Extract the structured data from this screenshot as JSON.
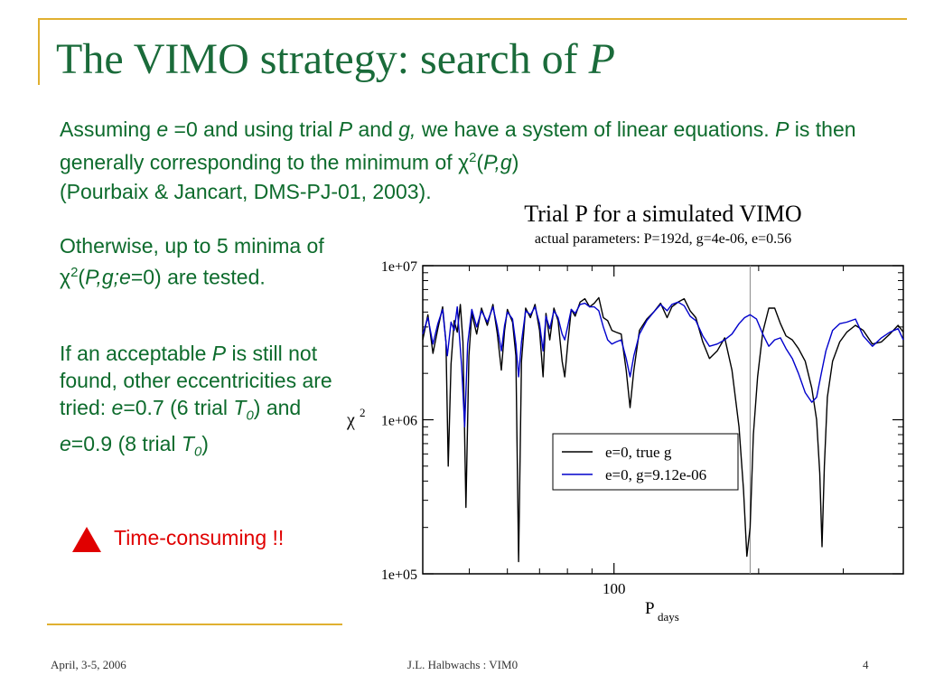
{
  "slide": {
    "title_main": "The VIMO strategy: search of ",
    "title_var": "P",
    "intro": {
      "p1": "Assuming ",
      "e": "e",
      "p2": " =0 and using trial ",
      "P": "P",
      "p3": "  and ",
      "g": "g,",
      "p4": " we have a system of linear equations. ",
      "P2": "P",
      "p5": " is then generally corresponding to the minimum of ",
      "chi": "χ",
      "sq": "2",
      "p6": "(",
      "Pg": "P,g",
      "p7": ")",
      "p8": "(Pourbaix & Jancart, DMS-PJ-01, 2003)."
    },
    "bullet1": {
      "t1": "Otherwise, up to 5 minima of ",
      "chi": "χ",
      "sq": "2",
      "t2": "(",
      "args": "P,g;e",
      "t3": "=0) are tested."
    },
    "bullet2": {
      "t1": "If an acceptable ",
      "P": "P",
      "t2": " is still not found, other eccentricities are tried: ",
      "e1": "e",
      "t3": "=0.7 (6 trial ",
      "T1": "T",
      "s1": "0",
      "t4": ") and ",
      "e2": "e",
      "t5": "=0.9 (8 trial ",
      "T2": "T",
      "s2": "0",
      "t6": ")"
    },
    "warning": "Time-consuming !!",
    "footer": {
      "date": "April, 3-5, 2006",
      "author": "J.L. Halbwachs : VIM0",
      "page": "4"
    }
  },
  "chart_data": {
    "type": "line",
    "title": "Trial P for a simulated VIMO",
    "subtitle": "actual parameters: P=192d, g=4e-06, e=0.56",
    "xlabel_main": "P",
    "xlabel_sub": "days",
    "ylabel_main": "χ",
    "ylabel_sup": "2",
    "xscale": "log",
    "yscale": "log",
    "xlim": [
      40,
      400
    ],
    "ylim": [
      100000,
      10000000
    ],
    "x_ticks": [
      100
    ],
    "x_tick_labels": [
      "100"
    ],
    "y_ticks": [
      100000,
      1000000,
      10000000
    ],
    "y_tick_labels": [
      "1e+05",
      "1e+06",
      "1e+07"
    ],
    "reference_line_x": 192,
    "legend_position": "lower-center",
    "series": [
      {
        "name": "e=0, true g",
        "color": "#000000",
        "points": [
          [
            40,
            3300000
          ],
          [
            41,
            4800000
          ],
          [
            42,
            2700000
          ],
          [
            43,
            3900000
          ],
          [
            44,
            5400000
          ],
          [
            44.7,
            3200000
          ],
          [
            45.2,
            500000
          ],
          [
            45.8,
            2300000
          ],
          [
            46.5,
            4400000
          ],
          [
            47.2,
            3700000
          ],
          [
            47.9,
            5600000
          ],
          [
            48.5,
            3200000
          ],
          [
            49.2,
            270000
          ],
          [
            49.9,
            2600000
          ],
          [
            50.6,
            4900000
          ],
          [
            51.8,
            3600000
          ],
          [
            53,
            5300000
          ],
          [
            54.5,
            4100000
          ],
          [
            56,
            5600000
          ],
          [
            57.2,
            3600000
          ],
          [
            58.3,
            2100000
          ],
          [
            59.2,
            3800000
          ],
          [
            60,
            5200000
          ],
          [
            61.5,
            4300000
          ],
          [
            62.5,
            2600000
          ],
          [
            63.3,
            120000
          ],
          [
            64.2,
            2400000
          ],
          [
            65.5,
            5300000
          ],
          [
            67,
            4600000
          ],
          [
            68.5,
            5600000
          ],
          [
            70,
            3800000
          ],
          [
            71.2,
            1900000
          ],
          [
            72.2,
            4900000
          ],
          [
            73.5,
            3300000
          ],
          [
            75,
            5300000
          ],
          [
            76.5,
            4400000
          ],
          [
            78,
            2400000
          ],
          [
            79,
            1900000
          ],
          [
            80.2,
            3200000
          ],
          [
            81.5,
            5200000
          ],
          [
            83,
            4700000
          ],
          [
            85,
            5800000
          ],
          [
            87,
            6100000
          ],
          [
            89,
            5400000
          ],
          [
            91,
            5700000
          ],
          [
            93,
            6200000
          ],
          [
            95,
            4600000
          ],
          [
            97,
            4400000
          ],
          [
            99,
            3800000
          ],
          [
            101,
            3700000
          ],
          [
            103.5,
            3600000
          ],
          [
            106,
            2100000
          ],
          [
            108,
            1200000
          ],
          [
            110,
            2100000
          ],
          [
            113,
            3800000
          ],
          [
            117,
            4500000
          ],
          [
            121,
            5000000
          ],
          [
            125,
            5700000
          ],
          [
            129,
            4600000
          ],
          [
            132,
            5400000
          ],
          [
            136,
            5800000
          ],
          [
            140,
            6100000
          ],
          [
            144,
            5100000
          ],
          [
            148,
            4600000
          ],
          [
            153,
            3200000
          ],
          [
            158,
            2500000
          ],
          [
            164,
            2800000
          ],
          [
            170,
            3400000
          ],
          [
            176,
            2100000
          ],
          [
            182,
            900000
          ],
          [
            186,
            350000
          ],
          [
            189,
            130000
          ],
          [
            192,
            200000
          ],
          [
            195,
            800000
          ],
          [
            199,
            1900000
          ],
          [
            204,
            3700000
          ],
          [
            210,
            5300000
          ],
          [
            216,
            5300000
          ],
          [
            222,
            4200000
          ],
          [
            228,
            3500000
          ],
          [
            235,
            3300000
          ],
          [
            242,
            2900000
          ],
          [
            250,
            2400000
          ],
          [
            258,
            1600000
          ],
          [
            264,
            1000000
          ],
          [
            268,
            450000
          ],
          [
            271,
            150000
          ],
          [
            274,
            500000
          ],
          [
            278,
            1400000
          ],
          [
            285,
            2400000
          ],
          [
            295,
            3200000
          ],
          [
            305,
            3700000
          ],
          [
            318,
            4100000
          ],
          [
            330,
            3800000
          ],
          [
            345,
            3100000
          ],
          [
            360,
            3200000
          ],
          [
            375,
            3600000
          ],
          [
            390,
            4100000
          ],
          [
            400,
            3700000
          ]
        ]
      },
      {
        "name": "e=0, g=9.12e-06",
        "color": "#0000cc",
        "points": [
          [
            40,
            3600000
          ],
          [
            41,
            4600000
          ],
          [
            42,
            3100000
          ],
          [
            43,
            4200000
          ],
          [
            44,
            5200000
          ],
          [
            45,
            2600000
          ],
          [
            45.8,
            4300000
          ],
          [
            46.5,
            3800000
          ],
          [
            47.2,
            5400000
          ],
          [
            48.2,
            2200000
          ],
          [
            48.9,
            900000
          ],
          [
            49.6,
            3100000
          ],
          [
            50.6,
            5200000
          ],
          [
            51.8,
            4000000
          ],
          [
            53,
            5100000
          ],
          [
            54.5,
            4300000
          ],
          [
            56,
            5400000
          ],
          [
            57.2,
            4000000
          ],
          [
            58.3,
            2800000
          ],
          [
            59.2,
            4100000
          ],
          [
            60,
            5000000
          ],
          [
            61.5,
            4500000
          ],
          [
            62.5,
            3100000
          ],
          [
            63.3,
            1900000
          ],
          [
            64.2,
            3200000
          ],
          [
            65.5,
            5100000
          ],
          [
            67,
            4800000
          ],
          [
            68.5,
            5400000
          ],
          [
            70,
            4200000
          ],
          [
            71.2,
            2800000
          ],
          [
            72.2,
            4700000
          ],
          [
            73.5,
            3900000
          ],
          [
            75,
            5100000
          ],
          [
            76.5,
            4600000
          ],
          [
            78,
            3600000
          ],
          [
            79,
            3300000
          ],
          [
            80.2,
            4100000
          ],
          [
            81.5,
            5200000
          ],
          [
            83,
            4900000
          ],
          [
            85,
            5600000
          ],
          [
            87,
            5700000
          ],
          [
            89,
            5400000
          ],
          [
            91,
            5400000
          ],
          [
            93,
            5100000
          ],
          [
            95,
            4000000
          ],
          [
            97,
            3300000
          ],
          [
            99,
            3100000
          ],
          [
            101,
            3200000
          ],
          [
            103.5,
            3300000
          ],
          [
            106,
            2500000
          ],
          [
            108,
            1900000
          ],
          [
            110,
            2600000
          ],
          [
            113,
            3600000
          ],
          [
            117,
            4400000
          ],
          [
            121,
            5000000
          ],
          [
            125,
            5600000
          ],
          [
            129,
            5100000
          ],
          [
            132,
            5600000
          ],
          [
            136,
            5800000
          ],
          [
            140,
            5500000
          ],
          [
            144,
            4700000
          ],
          [
            148,
            4400000
          ],
          [
            153,
            3500000
          ],
          [
            158,
            3000000
          ],
          [
            164,
            3100000
          ],
          [
            170,
            3300000
          ],
          [
            176,
            3600000
          ],
          [
            182,
            4200000
          ],
          [
            187,
            4600000
          ],
          [
            192,
            4800000
          ],
          [
            198,
            4500000
          ],
          [
            204,
            3600000
          ],
          [
            210,
            3000000
          ],
          [
            216,
            3300000
          ],
          [
            222,
            3400000
          ],
          [
            228,
            2900000
          ],
          [
            235,
            2500000
          ],
          [
            242,
            2000000
          ],
          [
            250,
            1500000
          ],
          [
            258,
            1300000
          ],
          [
            264,
            1400000
          ],
          [
            270,
            2000000
          ],
          [
            276,
            2800000
          ],
          [
            285,
            3800000
          ],
          [
            295,
            4200000
          ],
          [
            305,
            4300000
          ],
          [
            318,
            4500000
          ],
          [
            330,
            3500000
          ],
          [
            345,
            3000000
          ],
          [
            360,
            3400000
          ],
          [
            375,
            3700000
          ],
          [
            390,
            3900000
          ],
          [
            400,
            3300000
          ]
        ]
      }
    ]
  }
}
